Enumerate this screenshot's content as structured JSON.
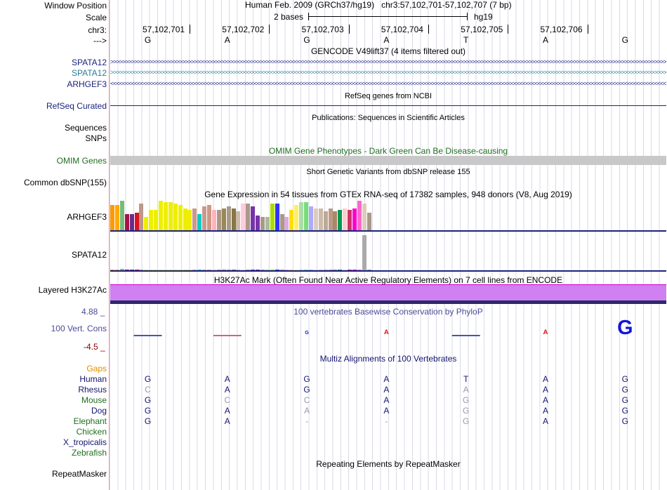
{
  "header": {
    "window_position_label": "Window Position",
    "window_position_text": "Human Feb. 2009 (GRCh37/hg19)   chr3:57,102,701-57,102,707 (7 bp)",
    "scale_label": "Scale",
    "scale_text": "2 bases",
    "scale_assembly": "hg19",
    "chrom_label": "chr3:",
    "strand_label": "--->",
    "coords": [
      "57,102,701",
      "57,102,702",
      "57,102,703",
      "57,102,704",
      "57,102,705",
      "57,102,706"
    ],
    "bases": [
      "G",
      "A",
      "G",
      "A",
      "T",
      "A",
      "G"
    ]
  },
  "tracks": {
    "gencode": {
      "title": "GENCODE V49lift37 (4 items filtered out)",
      "genes": [
        {
          "name": "SPATA12",
          "color": "#1a237e",
          "strand": "+",
          "glyph": ">"
        },
        {
          "name": "SPATA12",
          "color": "#2b7a9a",
          "strand": "+",
          "glyph": ">"
        },
        {
          "name": "ARHGEF3",
          "color": "#1a237e",
          "strand": "-",
          "glyph": "<"
        }
      ]
    },
    "refseq": {
      "title": "RefSeq genes from NCBI",
      "label": "RefSeq Curated"
    },
    "publications": {
      "title": "Publications: Sequences in Scientific Articles",
      "label_line1": "Sequences",
      "label_line2": "SNPs"
    },
    "omim": {
      "title": "OMIM Gene Phenotypes - Dark Green Can Be Disease-causing",
      "label": "OMIM Genes"
    },
    "dbsnp": {
      "title": "Short Genetic Variants from dbSNP release 155",
      "label": "Common dbSNP(155)"
    },
    "gtex": {
      "title": "Gene Expression in 54 tissues from GTEx RNA-seq of 17382 samples, 948 donors (V8, Aug 2019)",
      "genes": [
        "ARHGEF3",
        "SPATA12"
      ],
      "arhgef3_levels": [
        0.85,
        0.85,
        1.0,
        0.55,
        0.55,
        0.6,
        0.9,
        0.45,
        0.7,
        0.7,
        1.0,
        0.95,
        0.95,
        0.9,
        0.85,
        0.75,
        0.7,
        0.75,
        0.55,
        0.8,
        0.85,
        0.7,
        0.7,
        0.75,
        0.8,
        0.75,
        0.65,
        0.9,
        0.9,
        0.8,
        0.5,
        0.45,
        0.45,
        0.9,
        0.9,
        0.55,
        0.45,
        0.7,
        0.85,
        0.95,
        0.95,
        0.8,
        0.75,
        0.75,
        0.65,
        0.75,
        0.65,
        0.7,
        0.75,
        0.7,
        0.75,
        1.0,
        0.9,
        0.6
      ],
      "arhgef3_colors": [
        "#ff9900",
        "#ffaa00",
        "#77bb77",
        "#aa1144",
        "#6a2a8a",
        "#dd1122",
        "#bb9988",
        "#eeee00",
        "#eeee00",
        "#eeee00",
        "#eeee00",
        "#eeee00",
        "#eeee00",
        "#eeee00",
        "#eeee00",
        "#eeee00",
        "#eeee00",
        "#cc9988",
        "#00cccc",
        "#cc9988",
        "#cc9988",
        "#ffb3bb",
        "#aa9988",
        "#998855",
        "#aa9988",
        "#887744",
        "#ccbbaa",
        "#ffccdd",
        "#aa9988",
        "#7733aa",
        "#7733aa",
        "#aa9988",
        "#aabb99",
        "#aadd00",
        "#3333ff",
        "#aa9988",
        "#ddaadd",
        "#ffdd00",
        "#ffee66",
        "#aaddaa",
        "#77dd77",
        "#aaaaff",
        "#ddccbb",
        "#ccbbaa",
        "#bbaa99",
        "#bb9988",
        "#aa8866",
        "#009955",
        "#ffcccc",
        "#cc3366",
        "#ff00cc",
        "#ff66cc",
        "#ddccbb",
        "#aa9988"
      ],
      "spata12_levels": [
        0.02,
        0.02,
        0.05,
        0.02,
        0.01,
        0.01,
        0.01,
        0.01,
        0.01,
        0.01,
        0.01,
        0.01,
        0.01,
        0.01,
        0.01,
        0.01,
        0.01,
        0.01,
        0.02,
        0.01,
        0.01,
        0.01,
        0.01,
        0.01,
        0.01,
        0.01,
        0.01,
        0.01,
        0.01,
        0.01,
        0.01,
        0.01,
        0.01,
        0.01,
        0.01,
        0.01,
        0.01,
        0.01,
        0.01,
        0.01,
        0.02,
        0.01,
        0.01,
        0.01,
        0.01,
        0.01,
        0.02,
        0.01,
        0.01,
        0.01,
        0.01,
        0.01,
        1.0,
        0.01
      ]
    },
    "h3k27ac": {
      "title": "H3K27Ac Mark (Often Found Near Active Regulatory Elements) on 7 cell lines from ENCODE",
      "label": "Layered H3K27Ac"
    },
    "phylop": {
      "title": "100 vertebrates Basewise Conservation by PhyloP",
      "label": "100 Vert. Cons",
      "max": "4.88 _",
      "min": "-4.5 _",
      "scores": [
        -0.3,
        -0.2,
        0.6,
        0.8,
        -0.3,
        0.8,
        2.4
      ]
    },
    "multiz": {
      "title": "Multiz Alignments of 100 Vertebrates",
      "gaps_label": "Gaps",
      "species": [
        {
          "name": "Human",
          "color": "#14146e",
          "bases": [
            "G",
            "A",
            "G",
            "A",
            "T",
            "A",
            "G"
          ],
          "faded": [
            false,
            false,
            false,
            false,
            false,
            false,
            false
          ]
        },
        {
          "name": "Rhesus",
          "color": "#14146e",
          "bases": [
            "C",
            "A",
            "G",
            "A",
            "A",
            "A",
            "G"
          ],
          "faded": [
            true,
            false,
            false,
            false,
            true,
            false,
            false
          ]
        },
        {
          "name": "Mouse",
          "color": "#1f6e1f",
          "bases": [
            "G",
            "C",
            "C",
            "A",
            "G",
            "A",
            "G"
          ],
          "faded": [
            false,
            true,
            true,
            false,
            true,
            false,
            false
          ]
        },
        {
          "name": "Dog",
          "color": "#14146e",
          "bases": [
            "G",
            "A",
            "A",
            "A",
            "G",
            "A",
            "G"
          ],
          "faded": [
            false,
            false,
            true,
            false,
            true,
            false,
            false
          ]
        },
        {
          "name": "Elephant",
          "color": "#1f6e1f",
          "bases": [
            "G",
            "A",
            "-",
            "-",
            "G",
            "A",
            "G"
          ],
          "faded": [
            false,
            false,
            true,
            true,
            true,
            false,
            false
          ]
        },
        {
          "name": "Chicken",
          "color": "#1f6e1f",
          "bases": [
            "",
            "",
            "",
            "",
            "",
            "",
            ""
          ],
          "faded": [
            false,
            false,
            false,
            false,
            false,
            false,
            false
          ]
        },
        {
          "name": "X_tropicalis",
          "color": "#14146e",
          "bases": [
            "",
            "",
            "",
            "",
            "",
            "",
            ""
          ],
          "faded": [
            false,
            false,
            false,
            false,
            false,
            false,
            false
          ]
        },
        {
          "name": "Zebrafish",
          "color": "#1f6e1f",
          "bases": [
            "",
            "",
            "",
            "",
            "",
            "",
            ""
          ],
          "faded": [
            false,
            false,
            false,
            false,
            false,
            false,
            false
          ]
        }
      ]
    },
    "repeatmasker": {
      "title": "Repeating Elements by RepeatMasker",
      "label": "RepeatMasker"
    }
  },
  "colors": {
    "gtex_line": "#1a237e",
    "omim_bar": "#c8c8c8",
    "h3k27ac_fill": "#d080f0",
    "phylop_label": "#4a4a9a",
    "phylop_min": "#8b0000",
    "gaps_label": "#e09000",
    "conserved_blue": "#1414dc",
    "conserved_red": "#dc1414"
  }
}
